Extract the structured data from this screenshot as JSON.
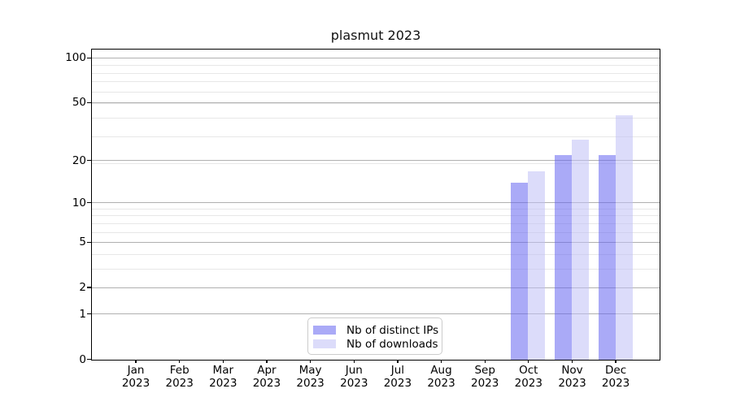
{
  "chart_data": {
    "type": "bar",
    "title": "plasmut 2023",
    "categories": [
      "Jan",
      "Feb",
      "Mar",
      "Apr",
      "May",
      "Jun",
      "Jul",
      "Aug",
      "Sep",
      "Oct",
      "Nov",
      "Dec"
    ],
    "xtick_year_line": "2023",
    "series": [
      {
        "name": "Nb of distinct IPs",
        "color": "rgba(100,100,240,0.55)",
        "values": [
          0,
          0,
          0,
          0,
          0,
          0,
          0,
          0,
          0,
          14,
          22,
          22
        ]
      },
      {
        "name": "Nb of downloads",
        "color": "rgba(191,191,246,0.55)",
        "values": [
          0,
          0,
          0,
          0,
          0,
          0,
          0,
          0,
          0,
          17,
          28,
          41
        ]
      }
    ],
    "yscale": "log1p",
    "yticks": [
      0,
      1,
      2,
      5,
      10,
      20,
      50,
      100
    ],
    "minor_yticks": [
      3,
      4,
      6,
      7,
      8,
      9,
      19,
      29,
      39,
      49,
      59,
      69,
      79,
      89
    ],
    "ylim": [
      0,
      113
    ],
    "xlabel": "",
    "ylabel": "",
    "grid": true,
    "legend_position": "lower center"
  },
  "colors": {
    "major_grid": "#b0b0b0",
    "minor_grid": "#e7e7e7",
    "spine": "#000000",
    "background": "#ffffff"
  }
}
